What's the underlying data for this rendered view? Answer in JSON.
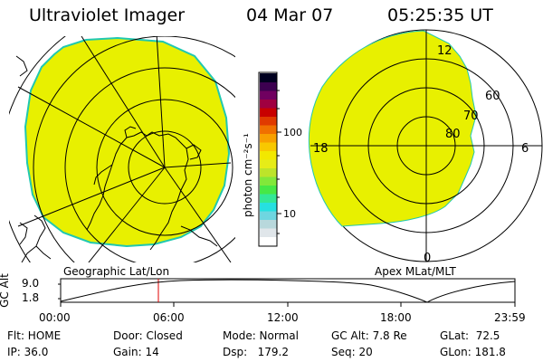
{
  "header": {
    "instrument": "Ultraviolet Imager",
    "date": "04 Mar 07",
    "time": "05:25:35 UT"
  },
  "colorbar": {
    "unit_label": "photon cm⁻²s⁻¹",
    "ticks": [
      "100",
      "10"
    ],
    "colors": [
      "#ffffff",
      "#e0e6ea",
      "#b8d8dc",
      "#6fd6e0",
      "#26e0e0",
      "#33e896",
      "#46e846",
      "#82e83a",
      "#bde42a",
      "#e6ec18",
      "#f2e800",
      "#f8c800",
      "#f8a000",
      "#f07000",
      "#e03a00",
      "#c80000",
      "#a00040",
      "#700060",
      "#3c0050",
      "#000020"
    ]
  },
  "left_map": {
    "label": "Geographic Lat/Lon",
    "fill_color": "#e8f000",
    "edge_color": "#20c8b0"
  },
  "right_map": {
    "label": "Apex MLat/MLT",
    "fill_color": "#e8f000",
    "mlt_labels": {
      "top": "12",
      "left": "18",
      "right": "6",
      "bottom": "0"
    },
    "lat_labels": [
      "60",
      "70",
      "80"
    ]
  },
  "altitude_plot": {
    "ylabel": "GC Alt",
    "yticks": [
      "9.0",
      "1.8"
    ],
    "xticks": [
      "00:00",
      "06:00",
      "12:00",
      "18:00",
      "23:59"
    ],
    "marker_color": "#e00000"
  },
  "footer": {
    "row1": [
      "Flt: HOME",
      "Door: Closed",
      "Mode: Normal",
      "GC Alt: 7.8 Re",
      "GLat:  72.5"
    ],
    "row2": [
      "IP: 36.0",
      "Gain: 14",
      "Dsp:   179.2",
      "Seq: 20",
      "GLon: 181.8"
    ]
  }
}
